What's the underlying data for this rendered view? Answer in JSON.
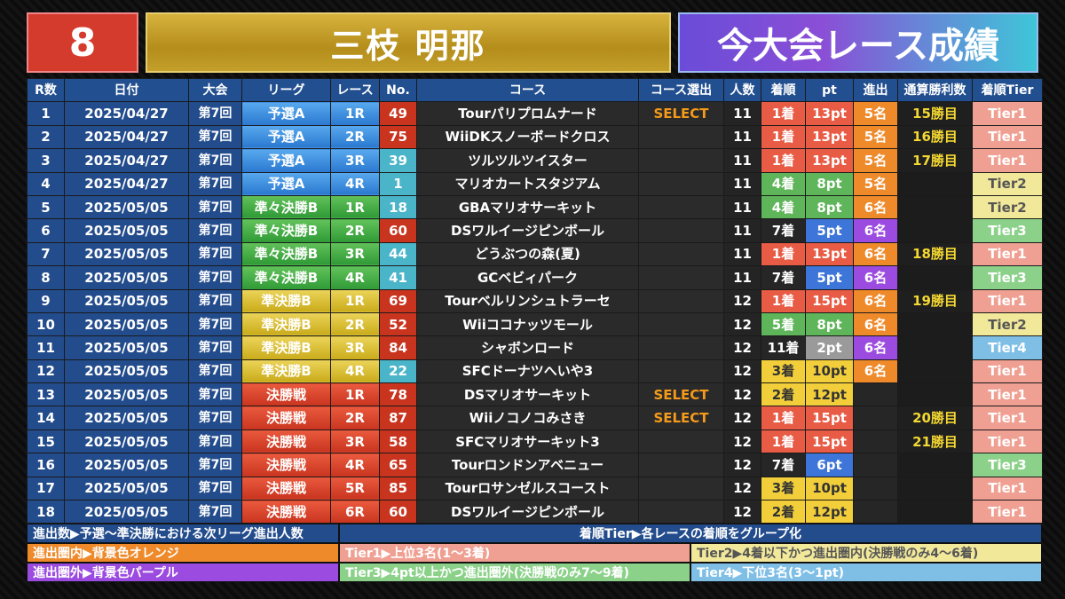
{
  "header": {
    "number": "8",
    "name": "三枝 明那",
    "title": "今大会レース成績"
  },
  "columns": [
    "R数",
    "日付",
    "大会",
    "リーグ",
    "レース",
    "No.",
    "コース",
    "コース選出",
    "人数",
    "着順",
    "pt",
    "進出",
    "通算勝利数",
    "着順Tier"
  ],
  "rows": [
    {
      "r": "1",
      "date": "2025/04/27",
      "taikai": "第7回",
      "league": "予選A",
      "race": "1R",
      "no": "49",
      "course": "Tourパリプロムナード",
      "select": "SELECT",
      "ninzu": "11",
      "rank": "1着",
      "pt": "13pt",
      "shin": "5名",
      "wins": "15勝目",
      "tier": "Tier1"
    },
    {
      "r": "2",
      "date": "2025/04/27",
      "taikai": "第7回",
      "league": "予選A",
      "race": "2R",
      "no": "75",
      "course": "WiiDKスノーボードクロス",
      "select": "",
      "ninzu": "11",
      "rank": "1着",
      "pt": "13pt",
      "shin": "5名",
      "wins": "16勝目",
      "tier": "Tier1"
    },
    {
      "r": "3",
      "date": "2025/04/27",
      "taikai": "第7回",
      "league": "予選A",
      "race": "3R",
      "no": "39",
      "course": "ツルツルツイスター",
      "select": "",
      "ninzu": "11",
      "rank": "1着",
      "pt": "13pt",
      "shin": "5名",
      "wins": "17勝目",
      "tier": "Tier1"
    },
    {
      "r": "4",
      "date": "2025/04/27",
      "taikai": "第7回",
      "league": "予選A",
      "race": "4R",
      "no": "1",
      "course": "マリオカートスタジアム",
      "select": "",
      "ninzu": "11",
      "rank": "4着",
      "pt": "8pt",
      "shin": "5名",
      "wins": "",
      "tier": "Tier2"
    },
    {
      "r": "5",
      "date": "2025/05/05",
      "taikai": "第7回",
      "league": "準々決勝B",
      "race": "1R",
      "no": "18",
      "course": "GBAマリオサーキット",
      "select": "",
      "ninzu": "11",
      "rank": "4着",
      "pt": "8pt",
      "shin": "6名",
      "wins": "",
      "tier": "Tier2"
    },
    {
      "r": "6",
      "date": "2025/05/05",
      "taikai": "第7回",
      "league": "準々決勝B",
      "race": "2R",
      "no": "60",
      "course": "DSワルイージピンボール",
      "select": "",
      "ninzu": "11",
      "rank": "7着",
      "pt": "5pt",
      "shin": "6名",
      "wins": "",
      "tier": "Tier3"
    },
    {
      "r": "7",
      "date": "2025/05/05",
      "taikai": "第7回",
      "league": "準々決勝B",
      "race": "3R",
      "no": "44",
      "course": "どうぶつの森(夏)",
      "select": "",
      "ninzu": "11",
      "rank": "1着",
      "pt": "13pt",
      "shin": "6名",
      "wins": "18勝目",
      "tier": "Tier1"
    },
    {
      "r": "8",
      "date": "2025/05/05",
      "taikai": "第7回",
      "league": "準々決勝B",
      "race": "4R",
      "no": "41",
      "course": "GCベビィパーク",
      "select": "",
      "ninzu": "11",
      "rank": "7着",
      "pt": "5pt",
      "shin": "6名",
      "wins": "",
      "tier": "Tier3"
    },
    {
      "r": "9",
      "date": "2025/05/05",
      "taikai": "第7回",
      "league": "準決勝B",
      "race": "1R",
      "no": "69",
      "course": "Tourベルリンシュトラーセ",
      "select": "",
      "ninzu": "12",
      "rank": "1着",
      "pt": "15pt",
      "shin": "6名",
      "wins": "19勝目",
      "tier": "Tier1"
    },
    {
      "r": "10",
      "date": "2025/05/05",
      "taikai": "第7回",
      "league": "準決勝B",
      "race": "2R",
      "no": "52",
      "course": "Wiiココナッツモール",
      "select": "",
      "ninzu": "12",
      "rank": "5着",
      "pt": "8pt",
      "shin": "6名",
      "wins": "",
      "tier": "Tier2"
    },
    {
      "r": "11",
      "date": "2025/05/05",
      "taikai": "第7回",
      "league": "準決勝B",
      "race": "3R",
      "no": "84",
      "course": "シャボンロード",
      "select": "",
      "ninzu": "12",
      "rank": "11着",
      "pt": "2pt",
      "shin": "6名",
      "wins": "",
      "tier": "Tier4"
    },
    {
      "r": "12",
      "date": "2025/05/05",
      "taikai": "第7回",
      "league": "準決勝B",
      "race": "4R",
      "no": "22",
      "course": "SFCドーナツへいや3",
      "select": "",
      "ninzu": "12",
      "rank": "3着",
      "pt": "10pt",
      "shin": "6名",
      "wins": "",
      "tier": "Tier1"
    },
    {
      "r": "13",
      "date": "2025/05/05",
      "taikai": "第7回",
      "league": "決勝戦",
      "race": "1R",
      "no": "78",
      "course": "DSマリオサーキット",
      "select": "SELECT",
      "ninzu": "12",
      "rank": "2着",
      "pt": "12pt",
      "shin": "",
      "wins": "",
      "tier": "Tier1"
    },
    {
      "r": "14",
      "date": "2025/05/05",
      "taikai": "第7回",
      "league": "決勝戦",
      "race": "2R",
      "no": "87",
      "course": "Wiiノコノコみさき",
      "select": "SELECT",
      "ninzu": "12",
      "rank": "1着",
      "pt": "15pt",
      "shin": "",
      "wins": "20勝目",
      "tier": "Tier1"
    },
    {
      "r": "15",
      "date": "2025/05/05",
      "taikai": "第7回",
      "league": "決勝戦",
      "race": "3R",
      "no": "58",
      "course": "SFCマリオサーキット3",
      "select": "",
      "ninzu": "12",
      "rank": "1着",
      "pt": "15pt",
      "shin": "",
      "wins": "21勝目",
      "tier": "Tier1"
    },
    {
      "r": "16",
      "date": "2025/05/05",
      "taikai": "第7回",
      "league": "決勝戦",
      "race": "4R",
      "no": "65",
      "course": "Tourロンドンアベニュー",
      "select": "",
      "ninzu": "12",
      "rank": "7着",
      "pt": "6pt",
      "shin": "",
      "wins": "",
      "tier": "Tier3"
    },
    {
      "r": "17",
      "date": "2025/05/05",
      "taikai": "第7回",
      "league": "決勝戦",
      "race": "5R",
      "no": "85",
      "course": "Tourロサンゼルスコースト",
      "select": "",
      "ninzu": "12",
      "rank": "3着",
      "pt": "10pt",
      "shin": "",
      "wins": "",
      "tier": "Tier1"
    },
    {
      "r": "18",
      "date": "2025/05/05",
      "taikai": "第7回",
      "league": "決勝戦",
      "race": "6R",
      "no": "60",
      "course": "DSワルイージピンボール",
      "select": "",
      "ninzu": "12",
      "rank": "2着",
      "pt": "12pt",
      "shin": "",
      "wins": "",
      "tier": "Tier1"
    }
  ],
  "legend": {
    "shinshutsu_title": "進出数▶予選〜準決勝における次リーグ進出人数",
    "inside": "進出圏内▶背景色オレンジ",
    "outside": "進出圏外▶背景色パープル",
    "tier_title": "着順Tier▶各レースの着順をグループ化",
    "tier1": "Tier1▶上位3名(1〜3着)",
    "tier2": "Tier2▶4着以下かつ進出圏内(決勝戦のみ4〜6着)",
    "tier3": "Tier3▶4pt以上かつ進出圏外(決勝戦のみ7〜9着)",
    "tier4": "Tier4▶下位3名(3〜1pt)"
  },
  "colors": {
    "league_yosen": "#2a78d0",
    "league_junjun": "#2f9a36",
    "league_jun": "#c9ab1a",
    "league_final": "#c9341f",
    "select": "#f59a1a",
    "wins": "#f4d832"
  }
}
